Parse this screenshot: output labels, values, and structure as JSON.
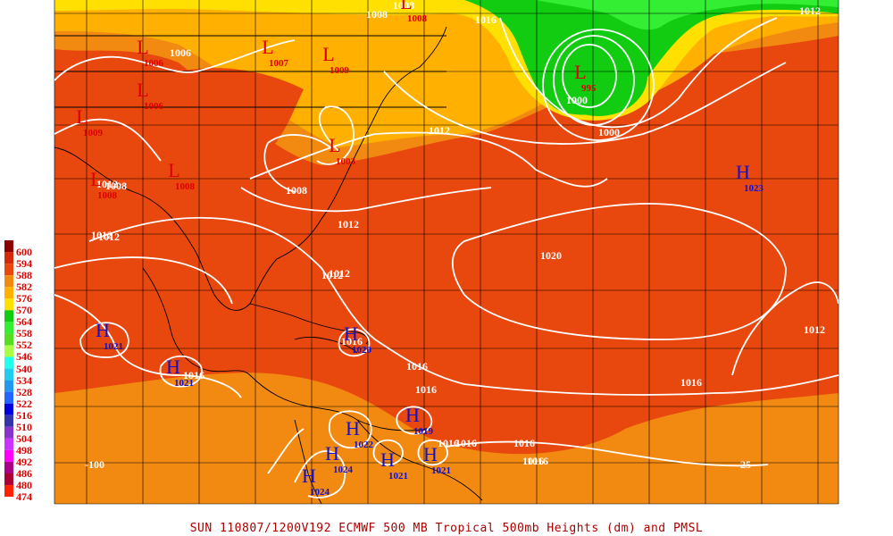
{
  "caption": "SUN 110807/1200V192  ECMWF  500 MB Tropical 500mb Heights (dm) and PMSL",
  "legend": [
    {
      "value": "600",
      "color": "#8b0000"
    },
    {
      "value": "594",
      "color": "#d22a0a"
    },
    {
      "value": "588",
      "color": "#e8470e"
    },
    {
      "value": "582",
      "color": "#f28a12"
    },
    {
      "value": "576",
      "color": "#ffb000"
    },
    {
      "value": "570",
      "color": "#ffe000"
    },
    {
      "value": "564",
      "color": "#11cc11"
    },
    {
      "value": "558",
      "color": "#33ee33"
    },
    {
      "value": "552",
      "color": "#55dd22"
    },
    {
      "value": "546",
      "color": "#aaff44"
    },
    {
      "value": "540",
      "color": "#22ffee"
    },
    {
      "value": "534",
      "color": "#22ccee"
    },
    {
      "value": "528",
      "color": "#2299ee"
    },
    {
      "value": "522",
      "color": "#2266ff"
    },
    {
      "value": "516",
      "color": "#0000dd"
    },
    {
      "value": "510",
      "color": "#3333aa"
    },
    {
      "value": "504",
      "color": "#8833cc"
    },
    {
      "value": "498",
      "color": "#cc33ff"
    },
    {
      "value": "492",
      "color": "#ff00ff"
    },
    {
      "value": "486",
      "color": "#aa0088"
    },
    {
      "value": "480",
      "color": "#aa0033"
    },
    {
      "value": "474",
      "color": "#ff2200"
    }
  ],
  "lows": [
    {
      "value": "1006"
    },
    {
      "value": "1006"
    },
    {
      "value": "1007"
    },
    {
      "value": "1009"
    },
    {
      "value": "1009"
    },
    {
      "value": "1008"
    },
    {
      "value": "1008"
    },
    {
      "value": "1003"
    },
    {
      "value": "995"
    },
    {
      "value": "1008"
    }
  ],
  "highs": [
    {
      "value": "1023"
    },
    {
      "value": "1021"
    },
    {
      "value": "1021"
    },
    {
      "value": "1020"
    },
    {
      "value": "1019"
    },
    {
      "value": "1022"
    },
    {
      "value": "1024"
    },
    {
      "value": "1024"
    },
    {
      "value": "1021"
    },
    {
      "value": "1021"
    }
  ],
  "isobar_labels": [
    "1012",
    "1008",
    "1008",
    "1006",
    "1008",
    "1012",
    "1012",
    "1012",
    "1016",
    "1020",
    "1016",
    "1016",
    "1016",
    "1016",
    "1016",
    "1012",
    "1012",
    "1000",
    "1000",
    "1012",
    "1016",
    "1016",
    "1008",
    "1016",
    "1016",
    "1012",
    "1012",
    "1016"
  ],
  "axis_labels": [
    "-100",
    "-25"
  ],
  "system_letters": {
    "low": "L",
    "high": "H"
  }
}
